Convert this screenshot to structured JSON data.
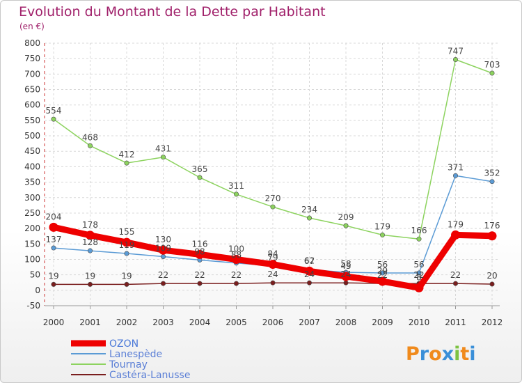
{
  "chart_data": {
    "type": "line",
    "title": "Evolution du Montant de la Dette par Habitant",
    "subtitle": "(en €)",
    "xlabel": "",
    "ylabel": "",
    "ylim": [
      -50,
      800
    ],
    "yticks": [
      "-50",
      "0",
      "50",
      "100",
      "150",
      "200",
      "250",
      "300",
      "350",
      "400",
      "450",
      "500",
      "550",
      "600",
      "650",
      "700",
      "750",
      "800"
    ],
    "categories": [
      "2000",
      "2001",
      "2002",
      "2003",
      "2004",
      "2005",
      "2006",
      "2007",
      "2008",
      "2009",
      "2010",
      "2011",
      "2012"
    ],
    "grid": true,
    "legend_position": "bottom-left",
    "series": [
      {
        "name": "Castéra-Lanusse",
        "color": "#7a1e1e",
        "values": [
          19,
          19,
          19,
          22,
          22,
          22,
          24,
          24,
          24,
          22,
          22,
          22,
          20
        ],
        "labels": [
          "19",
          "19",
          "19",
          "22",
          "22",
          "22",
          "24",
          "24",
          "24",
          "22",
          "22",
          "22",
          "20"
        ]
      },
      {
        "name": "Tournay",
        "color": "#8dd35f",
        "values": [
          554,
          468,
          412,
          431,
          365,
          311,
          270,
          234,
          209,
          179,
          166,
          747,
          703
        ],
        "labels": [
          "554",
          "468",
          "412",
          "431",
          "365",
          "311",
          "270",
          "234",
          "209",
          "179",
          "166",
          "747",
          "703"
        ]
      },
      {
        "name": "Lanespède",
        "color": "#5b9bd5",
        "values": [
          137,
          128,
          119,
          109,
          98,
          88,
          79,
          67,
          58,
          56,
          56,
          371,
          352
        ],
        "labels": [
          "137",
          "128",
          "119",
          "109",
          "98",
          "88",
          "79",
          "67",
          "58",
          "56",
          "56",
          "371",
          "352"
        ]
      },
      {
        "name": "OZON",
        "color": "#ee0000",
        "values": [
          204,
          178,
          155,
          130,
          116,
          100,
          84,
          62,
          45,
          29,
          8,
          179,
          176
        ],
        "labels": [
          "204",
          "178",
          "155",
          "130",
          "116",
          "100",
          "84",
          "62",
          "45",
          "29",
          "8",
          "179",
          "176"
        ]
      }
    ],
    "legend": [
      {
        "name": "OZON",
        "color": "#ee0000",
        "bold": true
      },
      {
        "name": "Lanespède",
        "color": "#5b9bd5",
        "bold": false
      },
      {
        "name": "Tournay",
        "color": "#8dd35f",
        "bold": false
      },
      {
        "name": "Castéra-Lanusse",
        "color": "#7a1e1e",
        "bold": false
      }
    ]
  },
  "logo": {
    "text": "Proxiti",
    "letters": [
      "P",
      "r",
      "o",
      "x",
      "i",
      "t",
      "i"
    ],
    "colors": [
      "#f08a1c",
      "#3a8fd8",
      "#f08a1c",
      "#3a8fd8",
      "#7cc242",
      "#f08a1c",
      "#3a8fd8"
    ]
  }
}
